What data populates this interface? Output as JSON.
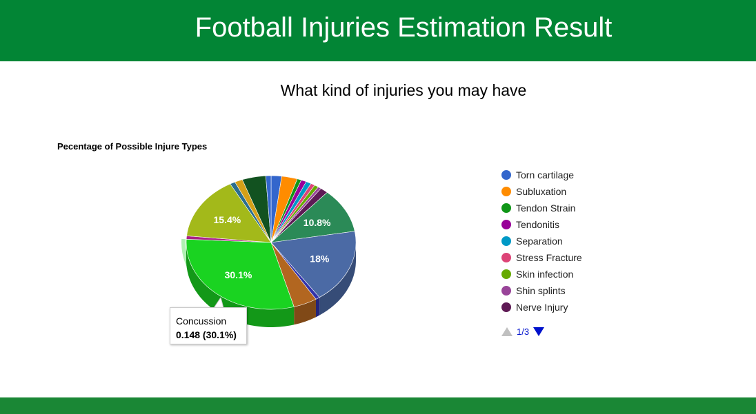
{
  "header": {
    "title": "Football Injuries Estimation Result"
  },
  "subtitle": "What kind of injuries you may have",
  "chart_data": {
    "type": "pie",
    "title": "Pecentage of Possible Injure Types",
    "three_d": true,
    "slices": [
      {
        "name": "Torn cartilage",
        "percent": 2.0,
        "color": "#3366cc"
      },
      {
        "name": "Subluxation",
        "percent": 3.0,
        "color": "#ff8c00"
      },
      {
        "name": "Tendon Strain",
        "percent": 0.8,
        "color": "#109618"
      },
      {
        "name": "Tendonitis",
        "percent": 1.0,
        "color": "#990099"
      },
      {
        "name": "Separation",
        "percent": 1.0,
        "color": "#0099c6"
      },
      {
        "name": "Stress Fracture",
        "percent": 0.8,
        "color": "#dd4477"
      },
      {
        "name": "Skin infection",
        "percent": 0.8,
        "color": "#66aa00"
      },
      {
        "name": "Shin splints",
        "percent": 0.6,
        "color": "#994499"
      },
      {
        "name": "Nerve Injury",
        "percent": 1.5,
        "color": "#5e1a55"
      },
      {
        "name": "",
        "percent": 10.8,
        "label": "10.8%",
        "color": "#2b8a57"
      },
      {
        "name": "",
        "percent": 18.0,
        "label": "18%",
        "color": "#4b6aa5"
      },
      {
        "name": "",
        "percent": 0.8,
        "color": "#3333aa"
      },
      {
        "name": "",
        "percent": 4.5,
        "color": "#b26620"
      },
      {
        "name": "Concussion",
        "percent": 30.1,
        "label": "30.1%",
        "value": 0.148,
        "color": "#1ad321",
        "highlighted": true
      },
      {
        "name": "",
        "percent": 0.8,
        "color": "#aa2288"
      },
      {
        "name": "",
        "percent": 15.4,
        "label": "15.4%",
        "color": "#a3b91a"
      },
      {
        "name": "",
        "percent": 1.0,
        "color": "#2b6e8e"
      },
      {
        "name": "",
        "percent": 1.5,
        "color": "#d4a017"
      },
      {
        "name": "",
        "percent": 4.5,
        "color": "#125220"
      },
      {
        "name": "",
        "percent": 1.0,
        "color": "#3366cc"
      }
    ]
  },
  "legend": {
    "items": [
      {
        "label": "Torn cartilage",
        "color": "#3366cc"
      },
      {
        "label": "Subluxation",
        "color": "#ff8c00"
      },
      {
        "label": "Tendon Strain",
        "color": "#109618"
      },
      {
        "label": "Tendonitis",
        "color": "#990099"
      },
      {
        "label": "Separation",
        "color": "#0099c6"
      },
      {
        "label": "Stress Fracture",
        "color": "#dd4477"
      },
      {
        "label": "Skin infection",
        "color": "#66aa00"
      },
      {
        "label": "Shin splints",
        "color": "#994499"
      },
      {
        "label": "Nerve Injury",
        "color": "#5e1a55"
      }
    ],
    "page": "1/3"
  },
  "tooltip": {
    "name": "Concussion",
    "value": "0.148 (30.1%)"
  }
}
